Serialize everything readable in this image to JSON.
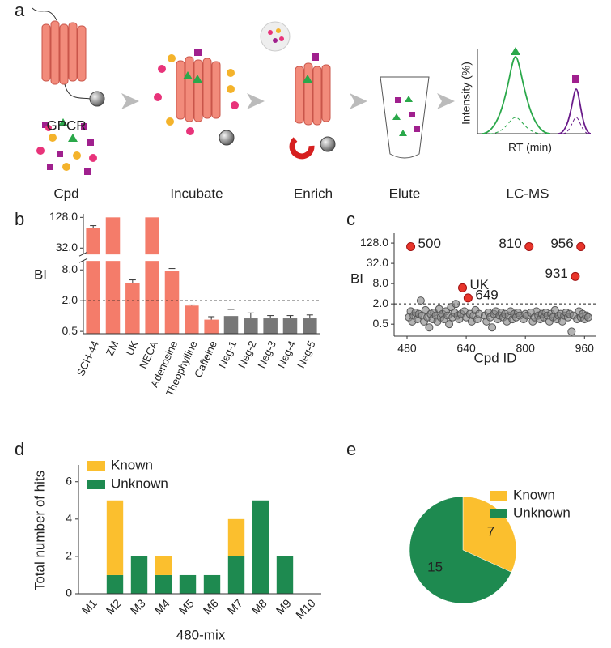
{
  "panels": [
    "a",
    "b",
    "c",
    "d",
    "e"
  ],
  "diagram": {
    "labels": [
      "GPCR",
      "Cpd",
      "Incubate",
      "Enrich",
      "Elute",
      "LC-MS"
    ],
    "chromatogram": {
      "ylabel": "Intensity (%)",
      "xlabel": "RT (min)"
    }
  },
  "chart_data": [
    {
      "type": "bar",
      "ylabel": "BI",
      "categories": [
        "SCH-44",
        "ZM",
        "UK",
        "NECA",
        "Adenosine",
        "Theophylline",
        "Caffeine",
        "Neg-1",
        "Neg-2",
        "Neg-3",
        "Neg-4",
        "Neg-5"
      ],
      "values": [
        80,
        128,
        4.5,
        128,
        7.5,
        1.6,
        0.85,
        1.0,
        0.9,
        0.9,
        0.9,
        0.9
      ],
      "errors": [
        8,
        null,
        0.6,
        null,
        1,
        0.05,
        0.12,
        0.35,
        0.25,
        0.12,
        0.12,
        0.15
      ],
      "colors": [
        "#f47c6a",
        "#f47c6a",
        "#f47c6a",
        "#f47c6a",
        "#f47c6a",
        "#f47c6a",
        "#f47c6a",
        "#777777",
        "#777777",
        "#777777",
        "#777777",
        "#777777"
      ],
      "log_scale": true,
      "log_base": 2,
      "ybreak": [
        12,
        24
      ],
      "ylim": [
        0.45,
        150
      ],
      "yticks": [
        0.5,
        {
          "value": 2,
          "label": "2.0"
        },
        {
          "value": 8,
          "label": "8.0"
        },
        {
          "value": 32,
          "label": "32.0"
        },
        {
          "value": 128,
          "label": "128.0"
        }
      ],
      "reference_line": 2
    },
    {
      "type": "scatter",
      "xlabel": "Cpd ID",
      "ylabel": "BI",
      "log_scale": true,
      "log_base": 2,
      "xlim": [
        445,
        990
      ],
      "ylim": [
        0.22,
        250
      ],
      "xticks": [
        480,
        640,
        800,
        960
      ],
      "yticks": [
        0.5,
        {
          "value": 2,
          "label": "2.0"
        },
        {
          "value": 8,
          "label": "8.0"
        },
        {
          "value": 32,
          "label": "32.0"
        },
        {
          "value": 128,
          "label": "128.0"
        }
      ],
      "reference_line": 2,
      "series": [
        {
          "color": "#8a8a8a",
          "x": [
            485,
            490,
            494,
            498,
            503,
            508,
            512,
            517,
            521,
            526,
            530,
            535,
            540,
            544,
            549,
            553,
            558,
            562,
            567,
            571,
            576,
            580,
            585,
            590,
            594,
            599,
            603,
            608,
            612,
            617,
            621,
            626,
            635,
            640,
            650,
            655,
            660,
            665,
            670,
            675,
            690,
            695,
            700,
            705,
            710,
            715,
            720,
            725,
            730,
            735,
            740,
            745,
            750,
            755,
            760,
            765,
            770,
            775,
            780,
            785,
            795,
            800,
            805,
            815,
            820,
            825,
            830,
            835,
            840,
            845,
            850,
            855,
            860,
            865,
            870,
            875,
            880,
            885,
            890,
            895,
            900,
            905,
            910,
            915,
            920,
            925,
            930,
            940,
            945,
            950,
            955,
            960,
            965,
            970
          ],
          "values": [
            0.8,
            1.2,
            0.6,
            0.9,
            1.1,
            0.7,
            1.0,
            2.5,
            0.9,
            0.6,
            1.3,
            0.8,
            0.4,
            1.0,
            0.7,
            1.1,
            0.9,
            0.6,
            1.4,
            0.8,
            1.0,
            0.7,
            1.2,
            0.9,
            0.5,
            1.6,
            0.8,
            1.1,
            2.0,
            0.9,
            0.7,
            1.0,
            1.2,
            0.8,
            1.0,
            0.6,
            0.9,
            1.3,
            0.7,
            1.0,
            0.9,
            0.6,
            1.1,
            0.8,
            0.4,
            1.0,
            1.2,
            0.7,
            0.9,
            1.1,
            0.8,
            1.0,
            0.6,
            0.9,
            1.2,
            0.7,
            1.0,
            0.8,
            1.1,
            0.9,
            0.7,
            1.0,
            0.9,
            1.1,
            0.6,
            0.8,
            1.2,
            0.9,
            0.7,
            1.0,
            0.8,
            1.1,
            0.9,
            0.6,
            1.0,
            0.8,
            1.3,
            0.7,
            0.9,
            1.0,
            0.6,
            0.9,
            1.1,
            0.8,
            1.0,
            0.3,
            0.9,
            0.7,
            1.2,
            0.8,
            1.0,
            0.7,
            0.9,
            0.8
          ]
        },
        {
          "color": "#e8352b",
          "x": [
            490,
            630,
            645,
            810,
            950,
            935
          ],
          "values": [
            100,
            6,
            3,
            100,
            100,
            13
          ],
          "labels": [
            "500",
            "UK",
            "649",
            "810",
            "956",
            "931"
          ]
        }
      ]
    },
    {
      "type": "stacked_bar",
      "xlabel": "480-mix",
      "ylabel": "Total number of hits",
      "categories": [
        "M1",
        "M2",
        "M3",
        "M4",
        "M5",
        "M6",
        "M7",
        "M8",
        "M9",
        "M10"
      ],
      "series": [
        {
          "name": "Unknown",
          "color": "#1e8a50",
          "values": [
            0,
            1,
            2,
            1,
            1,
            1,
            2,
            5,
            2,
            0
          ]
        },
        {
          "name": "Known",
          "color": "#fbbf2e",
          "values": [
            0,
            4,
            0,
            1,
            0,
            0,
            2,
            0,
            0,
            0
          ]
        }
      ],
      "ylim": [
        0,
        6.9
      ],
      "yticks": [
        0,
        2,
        4,
        6
      ],
      "legend": "upper left"
    },
    {
      "type": "pie",
      "labels": [
        "Known",
        "Unknown"
      ],
      "values": [
        7,
        15
      ],
      "colors": [
        "#fbbf2e",
        "#1e8a50"
      ],
      "legend": "right"
    }
  ]
}
